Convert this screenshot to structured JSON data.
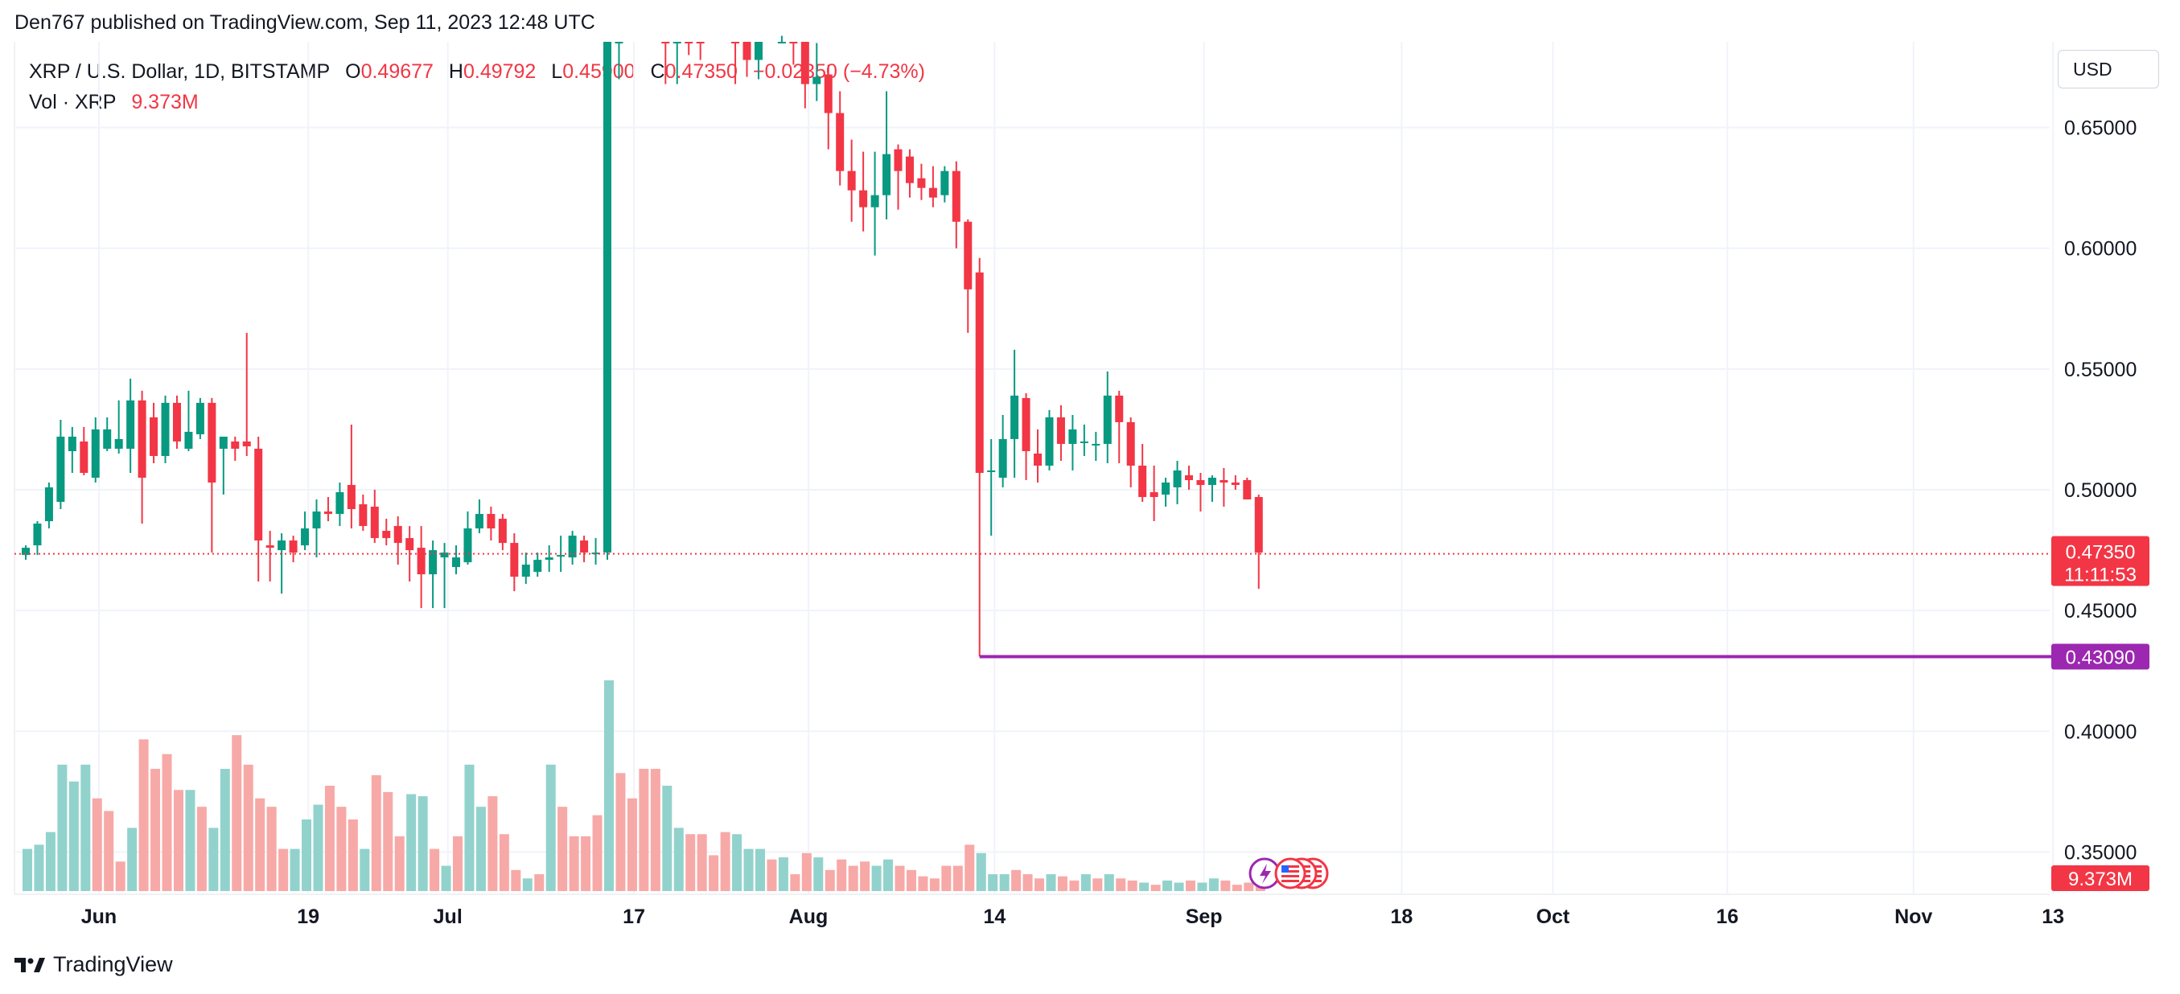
{
  "publisher_line": "Den767 published on TradingView.com, Sep 11, 2023 12:48 UTC",
  "legend": {
    "symbol": "XRP / U.S. Dollar, 1D, BITSTAMP",
    "open_label": "O",
    "open": "0.49677",
    "high_label": "H",
    "high": "0.49792",
    "low_label": "L",
    "low": "0.45900",
    "close_label": "C",
    "close": "0.47350",
    "change": "−0.02350 (−4.73%)",
    "vol_label": "Vol · XRP",
    "vol": "9.373M"
  },
  "currency_button": "USD",
  "brand": "TradingView",
  "colors": {
    "up": "#089981",
    "down": "#f23645",
    "vol_up": "#92d2cc",
    "vol_down": "#f7a9a7",
    "support_line": "#9c27b0",
    "grid": "#f0f3fa"
  },
  "chart_data": {
    "type": "candlestick",
    "y_ticks": [
      "0.65000",
      "0.60000",
      "0.55000",
      "0.50000",
      "0.45000",
      "0.40000",
      "0.35000"
    ],
    "y_values": [
      0.65,
      0.6,
      0.55,
      0.5,
      0.45,
      0.4,
      0.35
    ],
    "ylim": [
      0.3325,
      0.6855
    ],
    "x_ticks": [
      {
        "label": "Jun",
        "index": 2
      },
      {
        "label": "19",
        "index": 20
      },
      {
        "label": "Jul",
        "index": 32
      },
      {
        "label": "17",
        "index": 48
      },
      {
        "label": "Aug",
        "index": 63
      },
      {
        "label": "14",
        "index": 79
      },
      {
        "label": "Sep",
        "index": 97
      },
      {
        "label": "18",
        "index": 114
      },
      {
        "label": "Oct",
        "index": 127
      },
      {
        "label": "16",
        "index": 142
      },
      {
        "label": "Nov",
        "index": 158
      },
      {
        "label": "13",
        "index": 170
      }
    ],
    "last_price": {
      "value": 0.4735,
      "label": "0.47350",
      "countdown": "11:11:53"
    },
    "support_level": {
      "value": 0.4309,
      "label": "0.43090",
      "from_index": 82
    },
    "volume_badge": "9.373M",
    "candles": [
      {
        "o": 0.473,
        "h": 0.477,
        "l": 0.471,
        "c": 0.476
      },
      {
        "o": 0.477,
        "h": 0.487,
        "l": 0.473,
        "c": 0.486
      },
      {
        "o": 0.487,
        "h": 0.503,
        "l": 0.484,
        "c": 0.501
      },
      {
        "o": 0.495,
        "h": 0.529,
        "l": 0.492,
        "c": 0.522
      },
      {
        "o": 0.516,
        "h": 0.526,
        "l": 0.507,
        "c": 0.522
      },
      {
        "o": 0.52,
        "h": 0.526,
        "l": 0.506,
        "c": 0.507
      },
      {
        "o": 0.505,
        "h": 0.53,
        "l": 0.503,
        "c": 0.525
      },
      {
        "o": 0.517,
        "h": 0.53,
        "l": 0.516,
        "c": 0.525
      },
      {
        "o": 0.517,
        "h": 0.537,
        "l": 0.515,
        "c": 0.521
      },
      {
        "o": 0.517,
        "h": 0.546,
        "l": 0.507,
        "c": 0.537
      },
      {
        "o": 0.537,
        "h": 0.541,
        "l": 0.486,
        "c": 0.505
      },
      {
        "o": 0.53,
        "h": 0.536,
        "l": 0.511,
        "c": 0.514
      },
      {
        "o": 0.514,
        "h": 0.539,
        "l": 0.511,
        "c": 0.536
      },
      {
        "o": 0.536,
        "h": 0.539,
        "l": 0.517,
        "c": 0.52
      },
      {
        "o": 0.517,
        "h": 0.541,
        "l": 0.516,
        "c": 0.524
      },
      {
        "o": 0.523,
        "h": 0.538,
        "l": 0.521,
        "c": 0.536
      },
      {
        "o": 0.536,
        "h": 0.538,
        "l": 0.474,
        "c": 0.503
      },
      {
        "o": 0.517,
        "h": 0.522,
        "l": 0.498,
        "c": 0.522
      },
      {
        "o": 0.52,
        "h": 0.522,
        "l": 0.512,
        "c": 0.517
      },
      {
        "o": 0.52,
        "h": 0.565,
        "l": 0.514,
        "c": 0.518
      },
      {
        "o": 0.517,
        "h": 0.522,
        "l": 0.462,
        "c": 0.479
      },
      {
        "o": 0.477,
        "h": 0.483,
        "l": 0.462,
        "c": 0.476
      },
      {
        "o": 0.475,
        "h": 0.482,
        "l": 0.457,
        "c": 0.479
      },
      {
        "o": 0.479,
        "h": 0.481,
        "l": 0.47,
        "c": 0.474
      },
      {
        "o": 0.477,
        "h": 0.491,
        "l": 0.475,
        "c": 0.484
      },
      {
        "o": 0.484,
        "h": 0.496,
        "l": 0.472,
        "c": 0.491
      },
      {
        "o": 0.491,
        "h": 0.497,
        "l": 0.487,
        "c": 0.49
      },
      {
        "o": 0.49,
        "h": 0.503,
        "l": 0.485,
        "c": 0.499
      },
      {
        "o": 0.502,
        "h": 0.527,
        "l": 0.484,
        "c": 0.492
      },
      {
        "o": 0.494,
        "h": 0.498,
        "l": 0.483,
        "c": 0.485
      },
      {
        "o": 0.493,
        "h": 0.5,
        "l": 0.478,
        "c": 0.48
      },
      {
        "o": 0.483,
        "h": 0.488,
        "l": 0.477,
        "c": 0.48
      },
      {
        "o": 0.485,
        "h": 0.489,
        "l": 0.469,
        "c": 0.478
      },
      {
        "o": 0.48,
        "h": 0.485,
        "l": 0.462,
        "c": 0.475
      },
      {
        "o": 0.476,
        "h": 0.485,
        "l": 0.451,
        "c": 0.465
      },
      {
        "o": 0.465,
        "h": 0.479,
        "l": 0.451,
        "c": 0.475
      },
      {
        "o": 0.472,
        "h": 0.478,
        "l": 0.451,
        "c": 0.474
      },
      {
        "o": 0.468,
        "h": 0.477,
        "l": 0.465,
        "c": 0.472
      },
      {
        "o": 0.47,
        "h": 0.491,
        "l": 0.469,
        "c": 0.484
      },
      {
        "o": 0.484,
        "h": 0.496,
        "l": 0.482,
        "c": 0.49
      },
      {
        "o": 0.49,
        "h": 0.493,
        "l": 0.479,
        "c": 0.484
      },
      {
        "o": 0.488,
        "h": 0.49,
        "l": 0.475,
        "c": 0.478
      },
      {
        "o": 0.478,
        "h": 0.482,
        "l": 0.458,
        "c": 0.464
      },
      {
        "o": 0.464,
        "h": 0.474,
        "l": 0.461,
        "c": 0.469
      },
      {
        "o": 0.466,
        "h": 0.474,
        "l": 0.464,
        "c": 0.471
      },
      {
        "o": 0.471,
        "h": 0.477,
        "l": 0.466,
        "c": 0.472
      },
      {
        "o": 0.473,
        "h": 0.481,
        "l": 0.466,
        "c": 0.473
      },
      {
        "o": 0.472,
        "h": 0.483,
        "l": 0.469,
        "c": 0.481
      },
      {
        "o": 0.479,
        "h": 0.481,
        "l": 0.47,
        "c": 0.474
      },
      {
        "o": 0.474,
        "h": 0.48,
        "l": 0.469,
        "c": 0.474
      },
      {
        "o": 0.474,
        "h": 0.93,
        "l": 0.471,
        "c": 0.82
      }
    ],
    "candles_upper_partial": [
      {
        "index": 61,
        "o": 0.697,
        "h": 0.705,
        "l": 0.668,
        "c": 0.688
      },
      {
        "index": 62,
        "o": 0.69,
        "h": 0.7,
        "l": 0.671,
        "c": 0.678
      },
      {
        "index": 63,
        "o": 0.678,
        "h": 0.7,
        "l": 0.67,
        "c": 0.693
      },
      {
        "index": 65,
        "o": 0.693,
        "h": 0.705,
        "l": 0.688,
        "c": 0.697
      },
      {
        "index": 66,
        "o": 0.697,
        "h": 0.706,
        "l": 0.676,
        "c": 0.69
      },
      {
        "index": 67,
        "o": 0.69,
        "h": 0.697,
        "l": 0.658,
        "c": 0.668
      },
      {
        "index": 68,
        "o": 0.668,
        "h": 0.685,
        "l": 0.661,
        "c": 0.671
      },
      {
        "index": 69,
        "o": 0.672,
        "h": 0.676,
        "l": 0.641,
        "c": 0.656
      },
      {
        "index": 70,
        "o": 0.656,
        "h": 0.665,
        "l": 0.626,
        "c": 0.632
      },
      {
        "index": 71,
        "o": 0.632,
        "h": 0.645,
        "l": 0.611,
        "c": 0.624
      },
      {
        "index": 72,
        "o": 0.624,
        "h": 0.64,
        "l": 0.607,
        "c": 0.617
      },
      {
        "index": 73,
        "o": 0.617,
        "h": 0.64,
        "l": 0.597,
        "c": 0.622
      },
      {
        "index": 74,
        "o": 0.622,
        "h": 0.665,
        "l": 0.612,
        "c": 0.639
      },
      {
        "index": 75,
        "o": 0.641,
        "h": 0.643,
        "l": 0.616,
        "c": 0.632
      },
      {
        "index": 76,
        "o": 0.638,
        "h": 0.641,
        "l": 0.621,
        "c": 0.627
      },
      {
        "index": 77,
        "o": 0.629,
        "h": 0.635,
        "l": 0.62,
        "c": 0.625
      },
      {
        "index": 78,
        "o": 0.625,
        "h": 0.634,
        "l": 0.617,
        "c": 0.621
      },
      {
        "index": 79,
        "o": 0.622,
        "h": 0.634,
        "l": 0.619,
        "c": 0.632
      },
      {
        "index": 80,
        "o": 0.632,
        "h": 0.636,
        "l": 0.6,
        "c": 0.611
      },
      {
        "index": 81,
        "o": 0.611,
        "h": 0.612,
        "l": 0.565,
        "c": 0.583
      },
      {
        "index": 82,
        "o": 0.59,
        "h": 0.596,
        "l": 0.431,
        "c": 0.507
      },
      {
        "index": 83,
        "o": 0.508,
        "h": 0.521,
        "l": 0.481,
        "c": 0.508
      },
      {
        "index": 84,
        "o": 0.505,
        "h": 0.531,
        "l": 0.501,
        "c": 0.521
      },
      {
        "index": 85,
        "o": 0.521,
        "h": 0.558,
        "l": 0.505,
        "c": 0.539
      },
      {
        "index": 86,
        "o": 0.538,
        "h": 0.54,
        "l": 0.504,
        "c": 0.516
      },
      {
        "index": 87,
        "o": 0.515,
        "h": 0.525,
        "l": 0.503,
        "c": 0.51
      },
      {
        "index": 88,
        "o": 0.51,
        "h": 0.533,
        "l": 0.508,
        "c": 0.53
      },
      {
        "index": 89,
        "o": 0.53,
        "h": 0.535,
        "l": 0.512,
        "c": 0.519
      },
      {
        "index": 90,
        "o": 0.519,
        "h": 0.531,
        "l": 0.508,
        "c": 0.525
      },
      {
        "index": 91,
        "o": 0.52,
        "h": 0.527,
        "l": 0.514,
        "c": 0.52
      },
      {
        "index": 92,
        "o": 0.519,
        "h": 0.524,
        "l": 0.512,
        "c": 0.519
      },
      {
        "index": 93,
        "o": 0.519,
        "h": 0.549,
        "l": 0.511,
        "c": 0.539
      },
      {
        "index": 94,
        "o": 0.539,
        "h": 0.541,
        "l": 0.511,
        "c": 0.528
      },
      {
        "index": 95,
        "o": 0.528,
        "h": 0.53,
        "l": 0.501,
        "c": 0.51
      },
      {
        "index": 96,
        "o": 0.51,
        "h": 0.519,
        "l": 0.495,
        "c": 0.497
      },
      {
        "index": 97,
        "o": 0.499,
        "h": 0.51,
        "l": 0.487,
        "c": 0.497
      },
      {
        "index": 98,
        "o": 0.498,
        "h": 0.505,
        "l": 0.493,
        "c": 0.503
      },
      {
        "index": 99,
        "o": 0.501,
        "h": 0.512,
        "l": 0.494,
        "c": 0.508
      },
      {
        "index": 100,
        "o": 0.506,
        "h": 0.51,
        "l": 0.5,
        "c": 0.504
      },
      {
        "index": 101,
        "o": 0.504,
        "h": 0.507,
        "l": 0.491,
        "c": 0.502
      },
      {
        "index": 102,
        "o": 0.502,
        "h": 0.506,
        "l": 0.495,
        "c": 0.505
      },
      {
        "index": 103,
        "o": 0.504,
        "h": 0.509,
        "l": 0.493,
        "c": 0.503
      },
      {
        "index": 104,
        "o": 0.503,
        "h": 0.506,
        "l": 0.5,
        "c": 0.502
      },
      {
        "index": 105,
        "o": 0.504,
        "h": 0.505,
        "l": 0.496,
        "c": 0.496
      },
      {
        "index": 106,
        "o": 0.497,
        "h": 0.498,
        "l": 0.459,
        "c": 0.474
      }
    ],
    "early_upper": [
      {
        "index": 51,
        "o": 0.69,
        "h": 0.7,
        "l": 0.67,
        "c": 0.692
      },
      {
        "index": 55,
        "o": 0.69,
        "h": 0.7,
        "l": 0.668,
        "c": 0.688
      },
      {
        "index": 56,
        "o": 0.688,
        "h": 0.7,
        "l": 0.668,
        "c": 0.694
      },
      {
        "index": 57,
        "o": 0.694,
        "h": 0.7,
        "l": 0.68,
        "c": 0.69
      },
      {
        "index": 58,
        "o": 0.69,
        "h": 0.7,
        "l": 0.678,
        "c": 0.688
      }
    ],
    "volume": [
      {
        "v": 0.2,
        "up": true
      },
      {
        "v": 0.22,
        "up": true
      },
      {
        "v": 0.28,
        "up": true
      },
      {
        "v": 0.6,
        "up": true
      },
      {
        "v": 0.52,
        "up": true
      },
      {
        "v": 0.6,
        "up": true
      },
      {
        "v": 0.44,
        "up": false
      },
      {
        "v": 0.38,
        "up": false
      },
      {
        "v": 0.14,
        "up": false
      },
      {
        "v": 0.3,
        "up": true
      },
      {
        "v": 0.72,
        "up": false
      },
      {
        "v": 0.58,
        "up": false
      },
      {
        "v": 0.65,
        "up": false
      },
      {
        "v": 0.48,
        "up": false
      },
      {
        "v": 0.48,
        "up": true
      },
      {
        "v": 0.4,
        "up": false
      },
      {
        "v": 0.3,
        "up": true
      },
      {
        "v": 0.58,
        "up": true
      },
      {
        "v": 0.74,
        "up": false
      },
      {
        "v": 0.6,
        "up": false
      },
      {
        "v": 0.44,
        "up": false
      },
      {
        "v": 0.4,
        "up": false
      },
      {
        "v": 0.2,
        "up": false
      },
      {
        "v": 0.2,
        "up": true
      },
      {
        "v": 0.34,
        "up": true
      },
      {
        "v": 0.41,
        "up": true
      },
      {
        "v": 0.5,
        "up": false
      },
      {
        "v": 0.4,
        "up": false
      },
      {
        "v": 0.34,
        "up": false
      },
      {
        "v": 0.2,
        "up": true
      },
      {
        "v": 0.55,
        "up": false
      },
      {
        "v": 0.47,
        "up": false
      },
      {
        "v": 0.26,
        "up": false
      },
      {
        "v": 0.46,
        "up": true
      },
      {
        "v": 0.45,
        "up": true
      },
      {
        "v": 0.2,
        "up": false
      },
      {
        "v": 0.12,
        "up": true
      },
      {
        "v": 0.26,
        "up": false
      },
      {
        "v": 0.6,
        "up": true
      },
      {
        "v": 0.4,
        "up": true
      },
      {
        "v": 0.45,
        "up": false
      },
      {
        "v": 0.27,
        "up": false
      },
      {
        "v": 0.1,
        "up": false
      },
      {
        "v": 0.06,
        "up": true
      },
      {
        "v": 0.08,
        "up": false
      },
      {
        "v": 0.6,
        "up": true
      },
      {
        "v": 0.4,
        "up": false
      },
      {
        "v": 0.26,
        "up": false
      },
      {
        "v": 0.26,
        "up": false
      },
      {
        "v": 0.36,
        "up": false
      },
      {
        "v": 1.0,
        "up": true
      }
    ],
    "volume_right": [
      {
        "index": 51,
        "v": 0.56,
        "up": false
      },
      {
        "index": 52,
        "v": 0.44,
        "up": false
      },
      {
        "index": 53,
        "v": 0.58,
        "up": false
      },
      {
        "index": 54,
        "v": 0.58,
        "up": false
      },
      {
        "index": 55,
        "v": 0.5,
        "up": true
      },
      {
        "index": 56,
        "v": 0.3,
        "up": true
      },
      {
        "index": 57,
        "v": 0.27,
        "up": false
      },
      {
        "index": 58,
        "v": 0.27,
        "up": false
      },
      {
        "index": 59,
        "v": 0.17,
        "up": false
      },
      {
        "index": 60,
        "v": 0.28,
        "up": false
      },
      {
        "index": 61,
        "v": 0.27,
        "up": true
      },
      {
        "index": 62,
        "v": 0.2,
        "up": true
      },
      {
        "index": 63,
        "v": 0.2,
        "up": true
      },
      {
        "index": 64,
        "v": 0.15,
        "up": false
      },
      {
        "index": 65,
        "v": 0.16,
        "up": true
      },
      {
        "index": 66,
        "v": 0.08,
        "up": false
      },
      {
        "index": 67,
        "v": 0.18,
        "up": false
      },
      {
        "index": 68,
        "v": 0.16,
        "up": true
      },
      {
        "index": 69,
        "v": 0.1,
        "up": false
      },
      {
        "index": 70,
        "v": 0.15,
        "up": false
      },
      {
        "index": 71,
        "v": 0.12,
        "up": false
      },
      {
        "index": 72,
        "v": 0.14,
        "up": false
      },
      {
        "index": 73,
        "v": 0.12,
        "up": true
      },
      {
        "index": 74,
        "v": 0.15,
        "up": true
      },
      {
        "index": 75,
        "v": 0.12,
        "up": false
      },
      {
        "index": 76,
        "v": 0.1,
        "up": false
      },
      {
        "index": 77,
        "v": 0.07,
        "up": false
      },
      {
        "index": 78,
        "v": 0.06,
        "up": false
      },
      {
        "index": 79,
        "v": 0.12,
        "up": false
      },
      {
        "index": 80,
        "v": 0.12,
        "up": false
      },
      {
        "index": 81,
        "v": 0.22,
        "up": false
      },
      {
        "index": 82,
        "v": 0.18,
        "up": true
      },
      {
        "index": 83,
        "v": 0.08,
        "up": true
      },
      {
        "index": 84,
        "v": 0.08,
        "up": true
      },
      {
        "index": 85,
        "v": 0.1,
        "up": false
      },
      {
        "index": 86,
        "v": 0.08,
        "up": false
      },
      {
        "index": 87,
        "v": 0.06,
        "up": false
      },
      {
        "index": 88,
        "v": 0.08,
        "up": true
      },
      {
        "index": 89,
        "v": 0.07,
        "up": false
      },
      {
        "index": 90,
        "v": 0.05,
        "up": false
      },
      {
        "index": 91,
        "v": 0.08,
        "up": true
      },
      {
        "index": 92,
        "v": 0.06,
        "up": false
      },
      {
        "index": 93,
        "v": 0.08,
        "up": true
      },
      {
        "index": 94,
        "v": 0.06,
        "up": false
      },
      {
        "index": 95,
        "v": 0.05,
        "up": false
      },
      {
        "index": 96,
        "v": 0.04,
        "up": true
      },
      {
        "index": 97,
        "v": 0.03,
        "up": false
      },
      {
        "index": 98,
        "v": 0.05,
        "up": true
      },
      {
        "index": 99,
        "v": 0.04,
        "up": true
      },
      {
        "index": 100,
        "v": 0.05,
        "up": false
      },
      {
        "index": 101,
        "v": 0.04,
        "up": true
      },
      {
        "index": 102,
        "v": 0.06,
        "up": true
      },
      {
        "index": 103,
        "v": 0.05,
        "up": false
      },
      {
        "index": 104,
        "v": 0.03,
        "up": false
      },
      {
        "index": 105,
        "v": 0.04,
        "up": false
      },
      {
        "index": 106,
        "v": 0.02,
        "up": false
      }
    ]
  }
}
